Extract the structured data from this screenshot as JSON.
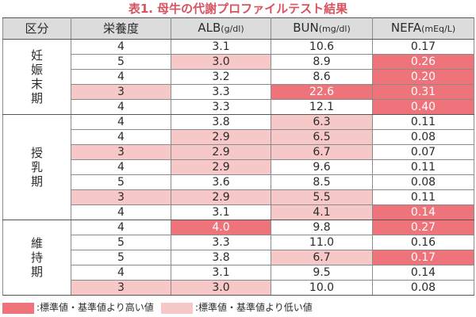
{
  "title": "表1. 母牛の代謝プロファイルテスト結果",
  "colors": {
    "high": "#ee737b",
    "low": "#f7c8c8",
    "title": "#d9535f",
    "header_bg": "#dcdcdc"
  },
  "headers": [
    {
      "main": "区分",
      "unit": ""
    },
    {
      "main": "栄養度",
      "unit": ""
    },
    {
      "main": "ALB",
      "unit": "(g/dl)"
    },
    {
      "main": "BUN",
      "unit": "(mg/dl)"
    },
    {
      "main": "NEFA",
      "unit": "(mEq/L)"
    }
  ],
  "groups": [
    {
      "label": "妊娠末期",
      "rows": [
        {
          "score": "4",
          "alb": "3.1",
          "bun": "10.6",
          "nefa": "0.17",
          "score_hl": "",
          "alb_hl": "",
          "bun_hl": "",
          "nefa_hl": ""
        },
        {
          "score": "5",
          "alb": "3.0",
          "bun": "8.9",
          "nefa": "0.26",
          "score_hl": "",
          "alb_hl": "low",
          "bun_hl": "",
          "nefa_hl": "high"
        },
        {
          "score": "4",
          "alb": "3.2",
          "bun": "8.6",
          "nefa": "0.20",
          "score_hl": "",
          "alb_hl": "",
          "bun_hl": "",
          "nefa_hl": "high"
        },
        {
          "score": "3",
          "alb": "3.3",
          "bun": "22.6",
          "nefa": "0.31",
          "score_hl": "low",
          "alb_hl": "",
          "bun_hl": "high",
          "nefa_hl": "high"
        },
        {
          "score": "4",
          "alb": "3.3",
          "bun": "12.1",
          "nefa": "0.40",
          "score_hl": "",
          "alb_hl": "",
          "bun_hl": "",
          "nefa_hl": "high"
        }
      ]
    },
    {
      "label": "授乳期",
      "rows": [
        {
          "score": "4",
          "alb": "3.8",
          "bun": "6.3",
          "nefa": "0.11",
          "score_hl": "",
          "alb_hl": "",
          "bun_hl": "low",
          "nefa_hl": ""
        },
        {
          "score": "4",
          "alb": "2.9",
          "bun": "6.5",
          "nefa": "0.08",
          "score_hl": "",
          "alb_hl": "low",
          "bun_hl": "low",
          "nefa_hl": ""
        },
        {
          "score": "3",
          "alb": "2.9",
          "bun": "6.7",
          "nefa": "0.07",
          "score_hl": "low",
          "alb_hl": "low",
          "bun_hl": "low",
          "nefa_hl": ""
        },
        {
          "score": "4",
          "alb": "2.9",
          "bun": "9.6",
          "nefa": "0.11",
          "score_hl": "",
          "alb_hl": "low",
          "bun_hl": "",
          "nefa_hl": ""
        },
        {
          "score": "5",
          "alb": "3.6",
          "bun": "8.5",
          "nefa": "0.08",
          "score_hl": "",
          "alb_hl": "",
          "bun_hl": "",
          "nefa_hl": ""
        },
        {
          "score": "3",
          "alb": "2.9",
          "bun": "5.5",
          "nefa": "0.11",
          "score_hl": "low",
          "alb_hl": "low",
          "bun_hl": "low",
          "nefa_hl": ""
        },
        {
          "score": "4",
          "alb": "3.1",
          "bun": "4.1",
          "nefa": "0.14",
          "score_hl": "",
          "alb_hl": "",
          "bun_hl": "low",
          "nefa_hl": "high"
        }
      ]
    },
    {
      "label": "維持期",
      "rows": [
        {
          "score": "4",
          "alb": "4.0",
          "bun": "9.8",
          "nefa": "0.27",
          "score_hl": "",
          "alb_hl": "high",
          "bun_hl": "",
          "nefa_hl": "high"
        },
        {
          "score": "5",
          "alb": "3.3",
          "bun": "11.0",
          "nefa": "0.16",
          "score_hl": "",
          "alb_hl": "",
          "bun_hl": "",
          "nefa_hl": ""
        },
        {
          "score": "5",
          "alb": "3.8",
          "bun": "6.7",
          "nefa": "0.17",
          "score_hl": "",
          "alb_hl": "",
          "bun_hl": "low",
          "nefa_hl": "high"
        },
        {
          "score": "4",
          "alb": "3.1",
          "bun": "9.5",
          "nefa": "0.14",
          "score_hl": "",
          "alb_hl": "",
          "bun_hl": "",
          "nefa_hl": ""
        },
        {
          "score": "3",
          "alb": "3.0",
          "bun": "10.0",
          "nefa": "0.08",
          "score_hl": "low",
          "alb_hl": "low",
          "bun_hl": "",
          "nefa_hl": ""
        }
      ]
    }
  ],
  "legend": [
    {
      "type": "high",
      "label": ":標準値・基準値より高い値"
    },
    {
      "type": "low",
      "label": ":標準値・基準値より低い値"
    }
  ]
}
